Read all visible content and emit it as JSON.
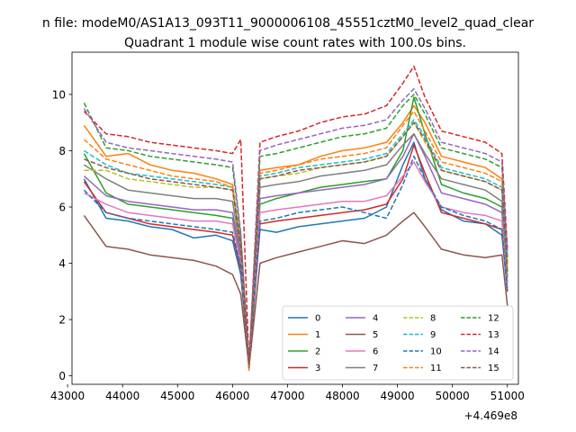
{
  "chart_data": {
    "type": "line",
    "suptitle": "n file: modeM0/AS1A13_093T11_9000006108_45551cztM0_level2_quad_clear",
    "title": "Quadrant 1 module wise count rates with 100.0s bins.",
    "xlabel": "",
    "ylabel": "",
    "x_offset_label": "+4.469e8",
    "xlim": [
      43080,
      51200
    ],
    "ylim": [
      -0.3,
      11.5
    ],
    "xticks": [
      43000,
      44000,
      45000,
      46000,
      47000,
      48000,
      49000,
      50000,
      51000
    ],
    "yticks": [
      0,
      2,
      4,
      6,
      8,
      10
    ],
    "x": [
      43300,
      43700,
      44100,
      44500,
      44900,
      45300,
      45700,
      46000,
      46150,
      46300,
      46500,
      46800,
      47200,
      47600,
      48000,
      48400,
      48800,
      49100,
      49300,
      49500,
      49800,
      50200,
      50600,
      50900,
      51000
    ],
    "legend": {
      "placement": "lower-right",
      "columns": 4
    },
    "series": [
      {
        "name": "0",
        "color": "#1f77b4",
        "style": "solid",
        "values": [
          7.0,
          5.6,
          5.5,
          5.3,
          5.2,
          4.9,
          5.0,
          4.8,
          3.6,
          0.4,
          5.2,
          5.1,
          5.3,
          5.4,
          5.5,
          5.6,
          6.0,
          7.5,
          8.3,
          7.0,
          5.9,
          5.5,
          5.4,
          5.0,
          3.0
        ]
      },
      {
        "name": "1",
        "color": "#ff7f0e",
        "style": "solid",
        "values": [
          8.9,
          7.8,
          7.9,
          7.5,
          7.3,
          7.2,
          7.0,
          6.8,
          4.5,
          0.2,
          7.3,
          7.4,
          7.5,
          7.8,
          8.0,
          8.1,
          8.3,
          9.0,
          9.6,
          9.0,
          7.8,
          7.6,
          7.4,
          7.0,
          4.0
        ]
      },
      {
        "name": "2",
        "color": "#2ca02c",
        "style": "solid",
        "values": [
          7.9,
          6.5,
          6.1,
          6.0,
          5.9,
          5.8,
          5.7,
          5.6,
          4.0,
          0.3,
          6.1,
          6.3,
          6.5,
          6.7,
          6.8,
          6.9,
          7.0,
          8.0,
          9.9,
          8.6,
          6.8,
          6.5,
          6.3,
          6.0,
          3.5
        ]
      },
      {
        "name": "3",
        "color": "#d62728",
        "style": "solid",
        "values": [
          6.9,
          5.8,
          5.6,
          5.4,
          5.3,
          5.2,
          5.1,
          5.0,
          3.8,
          0.3,
          5.4,
          5.5,
          5.6,
          5.7,
          5.8,
          5.9,
          6.1,
          7.0,
          8.2,
          7.2,
          5.8,
          5.6,
          5.4,
          5.2,
          3.0
        ]
      },
      {
        "name": "4",
        "color": "#9467bd",
        "style": "solid",
        "values": [
          7.1,
          6.4,
          6.2,
          6.1,
          6.0,
          5.9,
          5.9,
          5.8,
          4.2,
          0.4,
          6.3,
          6.4,
          6.5,
          6.6,
          6.7,
          6.8,
          7.0,
          7.8,
          8.6,
          7.8,
          6.5,
          6.3,
          6.1,
          5.8,
          3.3
        ]
      },
      {
        "name": "5",
        "color": "#8c564b",
        "style": "solid",
        "values": [
          5.7,
          4.6,
          4.5,
          4.3,
          4.2,
          4.1,
          3.9,
          3.6,
          2.9,
          0.3,
          4.0,
          4.2,
          4.4,
          4.6,
          4.8,
          4.7,
          5.0,
          5.5,
          5.8,
          5.3,
          4.5,
          4.3,
          4.2,
          4.3,
          2.5
        ]
      },
      {
        "name": "6",
        "color": "#e377c2",
        "style": "solid",
        "values": [
          6.5,
          6.1,
          5.8,
          5.7,
          5.6,
          5.5,
          5.5,
          5.4,
          4.0,
          0.4,
          5.8,
          5.9,
          6.0,
          6.1,
          6.2,
          6.2,
          6.4,
          7.1,
          7.6,
          6.9,
          6.0,
          5.8,
          5.7,
          5.5,
          3.1
        ]
      },
      {
        "name": "7",
        "color": "#7f7f7f",
        "style": "solid",
        "values": [
          7.5,
          7.0,
          6.6,
          6.5,
          6.4,
          6.3,
          6.3,
          6.2,
          4.4,
          0.4,
          6.7,
          6.8,
          6.9,
          7.1,
          7.2,
          7.3,
          7.5,
          8.2,
          8.6,
          7.9,
          7.0,
          6.8,
          6.6,
          6.2,
          3.5
        ]
      },
      {
        "name": "8",
        "color": "#bcbd22",
        "style": "dashed",
        "values": [
          7.3,
          7.3,
          7.0,
          6.9,
          6.8,
          6.7,
          6.7,
          6.6,
          4.6,
          0.4,
          7.0,
          7.1,
          7.2,
          7.4,
          7.5,
          7.6,
          7.8,
          8.5,
          9.0,
          8.3,
          7.3,
          7.1,
          6.9,
          6.6,
          3.6
        ]
      },
      {
        "name": "9",
        "color": "#17becf",
        "style": "dashed",
        "values": [
          8.0,
          7.5,
          7.2,
          7.1,
          7.0,
          6.9,
          6.8,
          6.7,
          4.8,
          0.4,
          7.1,
          7.2,
          7.4,
          7.5,
          7.6,
          7.7,
          7.9,
          8.6,
          9.1,
          8.5,
          7.4,
          7.2,
          7.0,
          6.7,
          3.7
        ]
      },
      {
        "name": "10",
        "color": "#1f77b4",
        "style": "dashed",
        "values": [
          6.6,
          5.8,
          5.6,
          5.5,
          5.4,
          5.3,
          5.2,
          5.1,
          3.9,
          0.4,
          5.5,
          5.6,
          5.8,
          5.9,
          6.0,
          5.8,
          5.6,
          6.8,
          7.8,
          7.0,
          6.0,
          5.7,
          5.5,
          5.2,
          3.0
        ]
      },
      {
        "name": "11",
        "color": "#ff7f0e",
        "style": "dashed",
        "values": [
          8.4,
          7.7,
          7.5,
          7.3,
          7.1,
          7.0,
          6.9,
          6.7,
          4.7,
          0.3,
          7.2,
          7.3,
          7.5,
          7.7,
          7.8,
          7.9,
          8.1,
          8.9,
          9.4,
          8.7,
          7.6,
          7.4,
          7.2,
          6.9,
          3.9
        ]
      },
      {
        "name": "12",
        "color": "#2ca02c",
        "style": "dashed",
        "values": [
          9.7,
          8.1,
          8.0,
          7.8,
          7.7,
          7.6,
          7.5,
          7.4,
          5.0,
          0.4,
          7.8,
          7.9,
          8.1,
          8.3,
          8.5,
          8.6,
          8.8,
          9.6,
          10.0,
          9.3,
          8.1,
          7.9,
          7.7,
          7.4,
          4.2
        ]
      },
      {
        "name": "13",
        "color": "#d62728",
        "style": "dashed",
        "values": [
          9.4,
          8.6,
          8.5,
          8.3,
          8.2,
          8.1,
          8.0,
          7.9,
          8.4,
          0.4,
          8.3,
          8.5,
          8.7,
          9.0,
          9.2,
          9.3,
          9.6,
          10.4,
          11.0,
          9.9,
          8.7,
          8.5,
          8.3,
          7.9,
          4.5
        ]
      },
      {
        "name": "14",
        "color": "#9467bd",
        "style": "dashed",
        "values": [
          9.5,
          8.3,
          8.1,
          8.0,
          7.9,
          7.8,
          7.7,
          7.6,
          5.1,
          0.4,
          8.0,
          8.2,
          8.4,
          8.6,
          8.8,
          8.9,
          9.1,
          9.8,
          10.2,
          9.5,
          8.3,
          8.1,
          7.9,
          7.6,
          4.3
        ]
      },
      {
        "name": "15",
        "color": "#8c564b",
        "style": "dashed",
        "values": [
          7.7,
          7.4,
          7.2,
          7.0,
          6.9,
          6.8,
          6.7,
          6.6,
          4.6,
          0.4,
          7.0,
          7.1,
          7.3,
          7.4,
          7.5,
          7.6,
          7.8,
          8.5,
          9.0,
          8.4,
          7.3,
          7.1,
          6.9,
          6.6,
          3.7
        ]
      }
    ]
  }
}
